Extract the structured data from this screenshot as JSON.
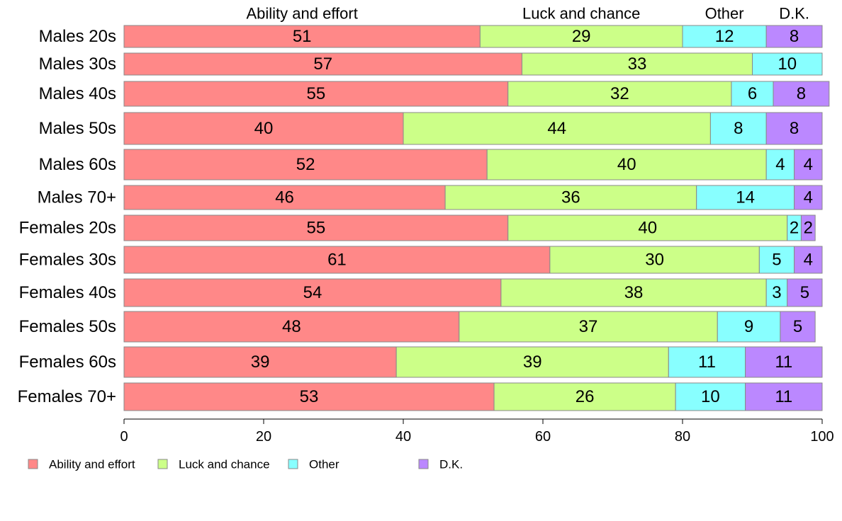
{
  "chart_data": {
    "type": "bar",
    "orientation": "horizontal",
    "stacked": true,
    "categories": [
      "Males 20s",
      "Males 30s",
      "Males 40s",
      "Males 50s",
      "Males 60s",
      "Males 70+",
      "Females 20s",
      "Females 30s",
      "Females 40s",
      "Females 50s",
      "Females 60s",
      "Females 70+"
    ],
    "series": [
      {
        "name": "Ability and effort",
        "color": "#ff8888",
        "values": [
          51,
          57,
          55,
          40,
          52,
          46,
          55,
          61,
          54,
          48,
          39,
          53
        ]
      },
      {
        "name": "Luck and chance",
        "color": "#ccff88",
        "values": [
          29,
          33,
          32,
          44,
          40,
          36,
          40,
          30,
          38,
          37,
          39,
          26
        ]
      },
      {
        "name": "Other",
        "color": "#88ffff",
        "values": [
          12,
          10,
          6,
          8,
          4,
          14,
          2,
          5,
          3,
          9,
          11,
          10
        ]
      },
      {
        "name": "D.K.",
        "color": "#bb88ff",
        "values": [
          8,
          0,
          8,
          8,
          4,
          4,
          2,
          4,
          5,
          5,
          11,
          11
        ]
      }
    ],
    "xlim": [
      0,
      100
    ],
    "xticks": [
      0,
      20,
      40,
      60,
      80,
      100
    ],
    "legend_position": "bottom-left",
    "grid": false
  }
}
